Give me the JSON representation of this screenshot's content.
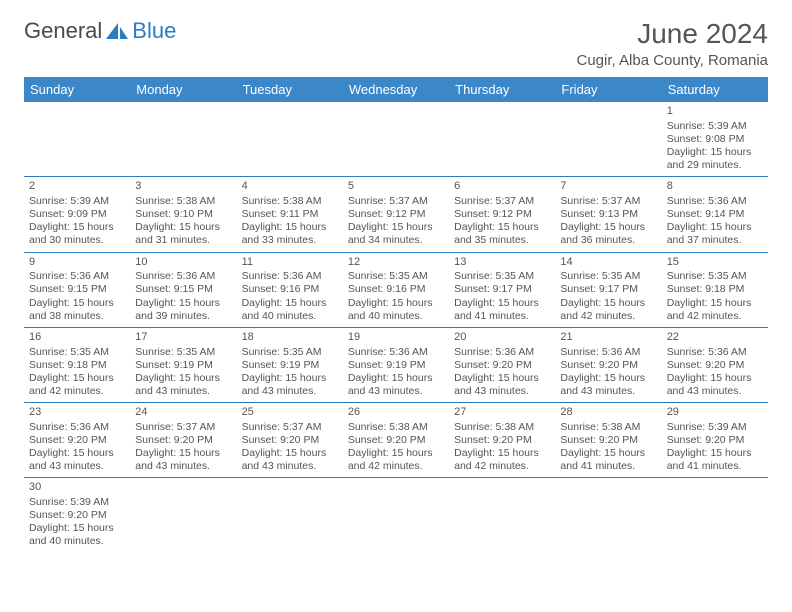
{
  "logo": {
    "text1": "General",
    "text2": "Blue"
  },
  "title": "June 2024",
  "location": "Cugir, Alba County, Romania",
  "header_bg": "#3b87c8",
  "border_color": "#2d7bc0",
  "day_names": [
    "Sunday",
    "Monday",
    "Tuesday",
    "Wednesday",
    "Thursday",
    "Friday",
    "Saturday"
  ],
  "weeks": [
    [
      null,
      null,
      null,
      null,
      null,
      null,
      {
        "n": "1",
        "sr": "Sunrise: 5:39 AM",
        "ss": "Sunset: 9:08 PM",
        "d1": "Daylight: 15 hours",
        "d2": "and 29 minutes."
      }
    ],
    [
      {
        "n": "2",
        "sr": "Sunrise: 5:39 AM",
        "ss": "Sunset: 9:09 PM",
        "d1": "Daylight: 15 hours",
        "d2": "and 30 minutes."
      },
      {
        "n": "3",
        "sr": "Sunrise: 5:38 AM",
        "ss": "Sunset: 9:10 PM",
        "d1": "Daylight: 15 hours",
        "d2": "and 31 minutes."
      },
      {
        "n": "4",
        "sr": "Sunrise: 5:38 AM",
        "ss": "Sunset: 9:11 PM",
        "d1": "Daylight: 15 hours",
        "d2": "and 33 minutes."
      },
      {
        "n": "5",
        "sr": "Sunrise: 5:37 AM",
        "ss": "Sunset: 9:12 PM",
        "d1": "Daylight: 15 hours",
        "d2": "and 34 minutes."
      },
      {
        "n": "6",
        "sr": "Sunrise: 5:37 AM",
        "ss": "Sunset: 9:12 PM",
        "d1": "Daylight: 15 hours",
        "d2": "and 35 minutes."
      },
      {
        "n": "7",
        "sr": "Sunrise: 5:37 AM",
        "ss": "Sunset: 9:13 PM",
        "d1": "Daylight: 15 hours",
        "d2": "and 36 minutes."
      },
      {
        "n": "8",
        "sr": "Sunrise: 5:36 AM",
        "ss": "Sunset: 9:14 PM",
        "d1": "Daylight: 15 hours",
        "d2": "and 37 minutes."
      }
    ],
    [
      {
        "n": "9",
        "sr": "Sunrise: 5:36 AM",
        "ss": "Sunset: 9:15 PM",
        "d1": "Daylight: 15 hours",
        "d2": "and 38 minutes."
      },
      {
        "n": "10",
        "sr": "Sunrise: 5:36 AM",
        "ss": "Sunset: 9:15 PM",
        "d1": "Daylight: 15 hours",
        "d2": "and 39 minutes."
      },
      {
        "n": "11",
        "sr": "Sunrise: 5:36 AM",
        "ss": "Sunset: 9:16 PM",
        "d1": "Daylight: 15 hours",
        "d2": "and 40 minutes."
      },
      {
        "n": "12",
        "sr": "Sunrise: 5:35 AM",
        "ss": "Sunset: 9:16 PM",
        "d1": "Daylight: 15 hours",
        "d2": "and 40 minutes."
      },
      {
        "n": "13",
        "sr": "Sunrise: 5:35 AM",
        "ss": "Sunset: 9:17 PM",
        "d1": "Daylight: 15 hours",
        "d2": "and 41 minutes."
      },
      {
        "n": "14",
        "sr": "Sunrise: 5:35 AM",
        "ss": "Sunset: 9:17 PM",
        "d1": "Daylight: 15 hours",
        "d2": "and 42 minutes."
      },
      {
        "n": "15",
        "sr": "Sunrise: 5:35 AM",
        "ss": "Sunset: 9:18 PM",
        "d1": "Daylight: 15 hours",
        "d2": "and 42 minutes."
      }
    ],
    [
      {
        "n": "16",
        "sr": "Sunrise: 5:35 AM",
        "ss": "Sunset: 9:18 PM",
        "d1": "Daylight: 15 hours",
        "d2": "and 42 minutes."
      },
      {
        "n": "17",
        "sr": "Sunrise: 5:35 AM",
        "ss": "Sunset: 9:19 PM",
        "d1": "Daylight: 15 hours",
        "d2": "and 43 minutes."
      },
      {
        "n": "18",
        "sr": "Sunrise: 5:35 AM",
        "ss": "Sunset: 9:19 PM",
        "d1": "Daylight: 15 hours",
        "d2": "and 43 minutes."
      },
      {
        "n": "19",
        "sr": "Sunrise: 5:36 AM",
        "ss": "Sunset: 9:19 PM",
        "d1": "Daylight: 15 hours",
        "d2": "and 43 minutes."
      },
      {
        "n": "20",
        "sr": "Sunrise: 5:36 AM",
        "ss": "Sunset: 9:20 PM",
        "d1": "Daylight: 15 hours",
        "d2": "and 43 minutes."
      },
      {
        "n": "21",
        "sr": "Sunrise: 5:36 AM",
        "ss": "Sunset: 9:20 PM",
        "d1": "Daylight: 15 hours",
        "d2": "and 43 minutes."
      },
      {
        "n": "22",
        "sr": "Sunrise: 5:36 AM",
        "ss": "Sunset: 9:20 PM",
        "d1": "Daylight: 15 hours",
        "d2": "and 43 minutes."
      }
    ],
    [
      {
        "n": "23",
        "sr": "Sunrise: 5:36 AM",
        "ss": "Sunset: 9:20 PM",
        "d1": "Daylight: 15 hours",
        "d2": "and 43 minutes."
      },
      {
        "n": "24",
        "sr": "Sunrise: 5:37 AM",
        "ss": "Sunset: 9:20 PM",
        "d1": "Daylight: 15 hours",
        "d2": "and 43 minutes."
      },
      {
        "n": "25",
        "sr": "Sunrise: 5:37 AM",
        "ss": "Sunset: 9:20 PM",
        "d1": "Daylight: 15 hours",
        "d2": "and 43 minutes."
      },
      {
        "n": "26",
        "sr": "Sunrise: 5:38 AM",
        "ss": "Sunset: 9:20 PM",
        "d1": "Daylight: 15 hours",
        "d2": "and 42 minutes."
      },
      {
        "n": "27",
        "sr": "Sunrise: 5:38 AM",
        "ss": "Sunset: 9:20 PM",
        "d1": "Daylight: 15 hours",
        "d2": "and 42 minutes."
      },
      {
        "n": "28",
        "sr": "Sunrise: 5:38 AM",
        "ss": "Sunset: 9:20 PM",
        "d1": "Daylight: 15 hours",
        "d2": "and 41 minutes."
      },
      {
        "n": "29",
        "sr": "Sunrise: 5:39 AM",
        "ss": "Sunset: 9:20 PM",
        "d1": "Daylight: 15 hours",
        "d2": "and 41 minutes."
      }
    ],
    [
      {
        "n": "30",
        "sr": "Sunrise: 5:39 AM",
        "ss": "Sunset: 9:20 PM",
        "d1": "Daylight: 15 hours",
        "d2": "and 40 minutes."
      },
      null,
      null,
      null,
      null,
      null,
      null
    ]
  ]
}
